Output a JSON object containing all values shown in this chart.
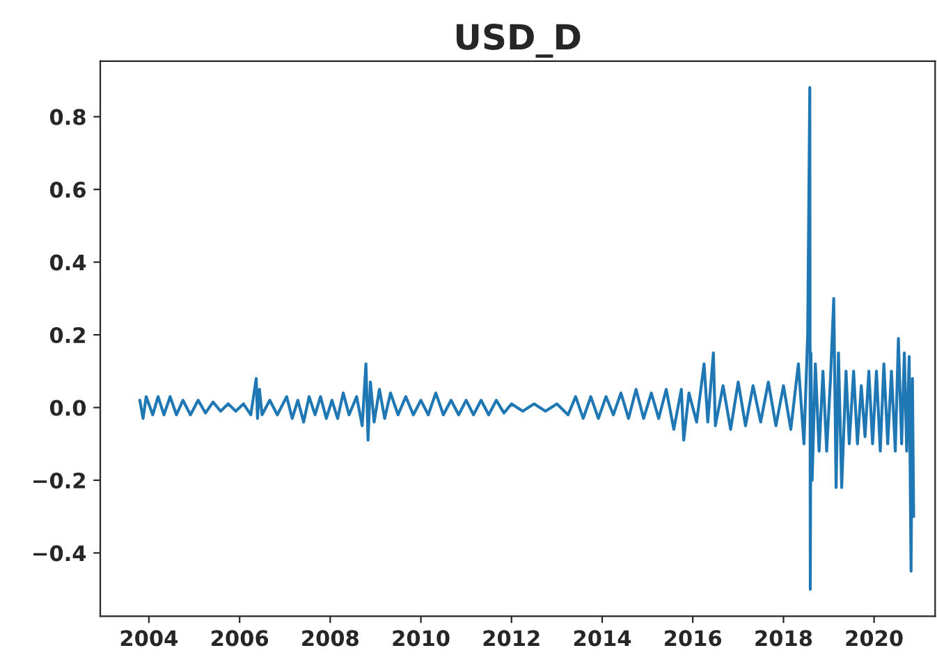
{
  "chart_data": {
    "type": "line",
    "title": "USD_D",
    "x": [
      "2003-10-20",
      "2003-11-15",
      "2003-12-10",
      "2004-02-01",
      "2004-03-15",
      "2004-05-01",
      "2004-06-20",
      "2004-08-10",
      "2004-10-01",
      "2004-12-01",
      "2005-02-01",
      "2005-04-01",
      "2005-06-01",
      "2005-08-01",
      "2005-10-01",
      "2005-12-01",
      "2006-02-01",
      "2006-04-01",
      "2006-05-15",
      "2006-05-25",
      "2006-06-10",
      "2006-07-01",
      "2006-09-01",
      "2006-11-01",
      "2007-01-15",
      "2007-03-01",
      "2007-04-15",
      "2007-06-01",
      "2007-07-15",
      "2007-09-01",
      "2007-10-15",
      "2007-12-01",
      "2008-01-15",
      "2008-03-01",
      "2008-04-15",
      "2008-06-01",
      "2008-08-01",
      "2008-09-15",
      "2008-10-15",
      "2008-11-01",
      "2008-11-20",
      "2008-12-20",
      "2009-02-01",
      "2009-03-15",
      "2009-05-01",
      "2009-07-01",
      "2009-09-01",
      "2009-11-01",
      "2010-01-01",
      "2010-03-01",
      "2010-05-01",
      "2010-07-01",
      "2010-09-01",
      "2010-11-01",
      "2011-01-01",
      "2011-03-01",
      "2011-05-01",
      "2011-07-01",
      "2011-09-01",
      "2011-11-01",
      "2012-01-01",
      "2012-04-01",
      "2012-07-01",
      "2012-10-01",
      "2013-01-01",
      "2013-04-01",
      "2013-06-01",
      "2013-08-01",
      "2013-10-01",
      "2013-12-01",
      "2014-02-01",
      "2014-04-01",
      "2014-06-01",
      "2014-08-01",
      "2014-10-01",
      "2014-12-01",
      "2015-02-01",
      "2015-04-01",
      "2015-06-01",
      "2015-08-01",
      "2015-10-01",
      "2015-10-20",
      "2015-12-01",
      "2016-02-01",
      "2016-04-01",
      "2016-05-01",
      "2016-06-15",
      "2016-07-01",
      "2016-09-01",
      "2016-11-01",
      "2017-01-01",
      "2017-03-01",
      "2017-05-01",
      "2017-07-01",
      "2017-09-01",
      "2017-11-01",
      "2018-01-01",
      "2018-03-01",
      "2018-05-01",
      "2018-06-15",
      "2018-07-15",
      "2018-08-01",
      "2018-08-05",
      "2018-08-10",
      "2018-08-20",
      "2018-09-15",
      "2018-10-15",
      "2018-11-15",
      "2018-12-15",
      "2019-01-15",
      "2019-02-10",
      "2019-03-01",
      "2019-03-20",
      "2019-04-15",
      "2019-05-20",
      "2019-06-15",
      "2019-07-20",
      "2019-08-20",
      "2019-09-20",
      "2019-10-20",
      "2019-11-20",
      "2019-12-20",
      "2020-01-20",
      "2020-02-20",
      "2020-03-20",
      "2020-04-20",
      "2020-05-20",
      "2020-06-20",
      "2020-07-15",
      "2020-08-10",
      "2020-09-01",
      "2020-09-20",
      "2020-10-10",
      "2020-10-25",
      "2020-11-05",
      "2020-11-15"
    ],
    "series": [
      {
        "color": "#1f77b4",
        "values": [
          0.02,
          -0.03,
          0.03,
          -0.02,
          0.03,
          -0.02,
          0.03,
          -0.02,
          0.02,
          -0.02,
          0.02,
          -0.015,
          0.015,
          -0.01,
          0.01,
          -0.01,
          0.01,
          -0.02,
          0.08,
          -0.03,
          0.05,
          -0.02,
          0.02,
          -0.02,
          0.03,
          -0.03,
          0.02,
          -0.04,
          0.03,
          -0.02,
          0.03,
          -0.03,
          0.02,
          -0.03,
          0.04,
          -0.02,
          0.03,
          -0.05,
          0.12,
          -0.09,
          0.07,
          -0.04,
          0.05,
          -0.03,
          0.04,
          -0.02,
          0.03,
          -0.02,
          0.02,
          -0.02,
          0.04,
          -0.02,
          0.02,
          -0.02,
          0.02,
          -0.02,
          0.02,
          -0.02,
          0.02,
          -0.015,
          0.01,
          -0.01,
          0.01,
          -0.01,
          0.01,
          -0.02,
          0.03,
          -0.03,
          0.03,
          -0.03,
          0.03,
          -0.02,
          0.04,
          -0.03,
          0.05,
          -0.03,
          0.04,
          -0.03,
          0.05,
          -0.06,
          0.05,
          -0.09,
          0.04,
          -0.04,
          0.12,
          -0.04,
          0.15,
          -0.05,
          0.06,
          -0.06,
          0.07,
          -0.05,
          0.06,
          -0.04,
          0.07,
          -0.05,
          0.06,
          -0.06,
          0.12,
          -0.1,
          0.2,
          0.88,
          -0.5,
          0.15,
          -0.2,
          0.12,
          -0.12,
          0.1,
          -0.12,
          0.08,
          0.3,
          -0.22,
          0.15,
          -0.22,
          0.1,
          -0.1,
          0.1,
          -0.1,
          0.06,
          -0.08,
          0.1,
          -0.1,
          0.1,
          -0.12,
          0.12,
          -0.1,
          0.1,
          -0.12,
          0.19,
          -0.1,
          0.15,
          -0.12,
          0.14,
          -0.45,
          0.08,
          -0.3
        ]
      }
    ],
    "xlim": [
      "2002-12-05",
      "2021-05-07"
    ],
    "xticks": [
      {
        "value": "2004-01-01",
        "label": "2004"
      },
      {
        "value": "2006-01-01",
        "label": "2006"
      },
      {
        "value": "2008-01-01",
        "label": "2008"
      },
      {
        "value": "2010-01-01",
        "label": "2010"
      },
      {
        "value": "2012-01-01",
        "label": "2012"
      },
      {
        "value": "2014-01-01",
        "label": "2014"
      },
      {
        "value": "2016-01-01",
        "label": "2016"
      },
      {
        "value": "2018-01-01",
        "label": "2018"
      },
      {
        "value": "2020-01-01",
        "label": "2020"
      }
    ],
    "ylim": [
      -0.574,
      0.953
    ],
    "yticks": [
      {
        "value": -0.4,
        "label": "−0.4"
      },
      {
        "value": -0.2,
        "label": "−0.2"
      },
      {
        "value": 0.0,
        "label": "0.0"
      },
      {
        "value": 0.2,
        "label": "0.2"
      },
      {
        "value": 0.4,
        "label": "0.4"
      },
      {
        "value": 0.6,
        "label": "0.6"
      },
      {
        "value": 0.8,
        "label": "0.8"
      }
    ],
    "grid": false
  }
}
